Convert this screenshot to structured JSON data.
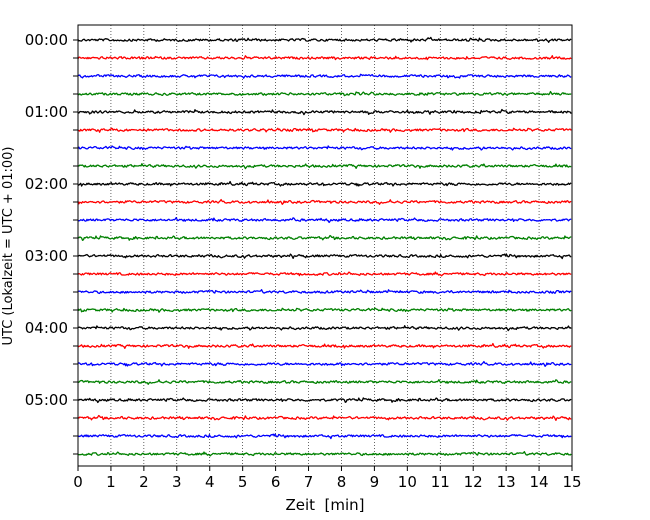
{
  "chart_data": {
    "type": "line",
    "title": "",
    "xlabel": "Zeit  [min]",
    "ylabel": "UTC (Lokalzeit = UTC + 01:00)",
    "xlim": [
      0,
      15
    ],
    "x_ticks": [
      0,
      1,
      2,
      3,
      4,
      5,
      6,
      7,
      8,
      9,
      10,
      11,
      12,
      13,
      14,
      15
    ],
    "y_tick_labels": [
      "00:00",
      "01:00",
      "02:00",
      "03:00",
      "04:00",
      "05:00"
    ],
    "traces_per_hour": 4,
    "trace_minutes": 15,
    "trace_start_times": [
      "00:00",
      "00:15",
      "00:30",
      "00:45",
      "01:00",
      "01:15",
      "01:30",
      "01:45",
      "02:00",
      "02:15",
      "02:30",
      "02:45",
      "03:00",
      "03:15",
      "03:30",
      "03:45",
      "04:00",
      "04:15",
      "04:30",
      "04:45",
      "05:00",
      "05:15",
      "05:30",
      "05:45"
    ],
    "trace_colors": [
      "#000000",
      "#ff0000",
      "#0000ff",
      "#008000"
    ],
    "grid": "vertical dotted at each minute",
    "legend": "none"
  }
}
